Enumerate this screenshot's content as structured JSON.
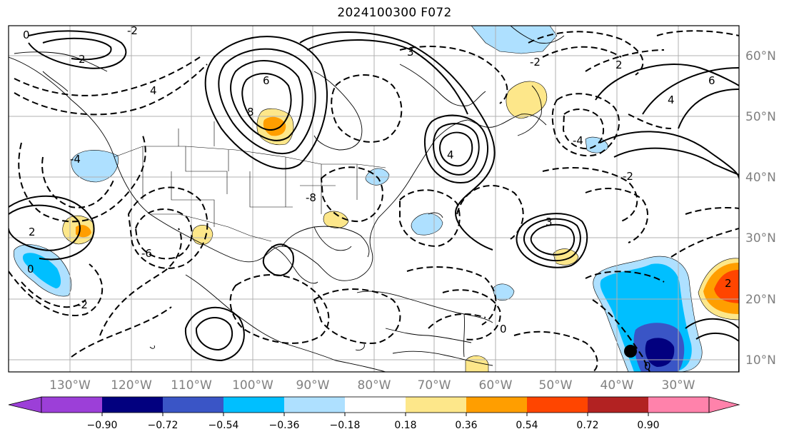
{
  "title": "2024100300 F072",
  "map": {
    "projection": "cylindrical",
    "lon_labels": [
      "130°W",
      "120°W",
      "110°W",
      "100°W",
      "90°W",
      "80°W",
      "70°W",
      "60°W",
      "50°W",
      "40°W",
      "30°W"
    ],
    "lat_labels": [
      "60°N",
      "50°N",
      "40°N",
      "30°N",
      "20°N",
      "10°N"
    ],
    "grid": true,
    "contour_labels": [
      "0",
      "2",
      "4",
      "6",
      "-2",
      "-4",
      "8",
      "3",
      "-6",
      "-8",
      "2",
      "-2",
      "6",
      "4",
      "-4",
      "3",
      "4",
      "-2",
      "2",
      "0",
      "-2",
      "2",
      "0",
      "0"
    ],
    "marker": {
      "type": "filled-circle",
      "color": "#000000",
      "location": "38°W 11°N"
    }
  },
  "colorbar": {
    "ticks": [
      "−0.90",
      "−0.72",
      "−0.54",
      "−0.36",
      "−0.18",
      "0.18",
      "0.36",
      "0.54",
      "0.72",
      "0.90"
    ],
    "colors": [
      "#9c3fd8",
      "#02007f",
      "#3a55c6",
      "#00bfff",
      "#aee0ff",
      "#ffffff",
      "#fde78a",
      "#ff9e00",
      "#ff4500",
      "#b22222",
      "#ff82ab"
    ],
    "extend": "both"
  }
}
